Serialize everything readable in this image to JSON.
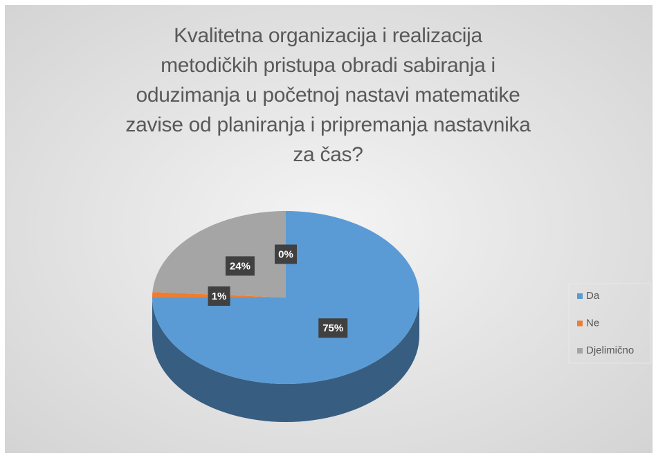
{
  "chart_data": {
    "type": "pie",
    "title": "Kvalitetna organizacija i realizacija\nmetodičkih pristupa obradi sabiranja i\noduzimanja u početnoj nastavi matematike\nzavise od planiranja i pripremanja nastavnika\nza čas?",
    "categories": [
      "Da",
      "Ne",
      "Djelimično",
      null
    ],
    "values": [
      75,
      1,
      24,
      0
    ],
    "value_labels": [
      "75%",
      "1%",
      "24%",
      "0%"
    ],
    "colors": [
      "#5b9bd5",
      "#ed7d31",
      "#a5a5a5"
    ],
    "legend": "right"
  }
}
